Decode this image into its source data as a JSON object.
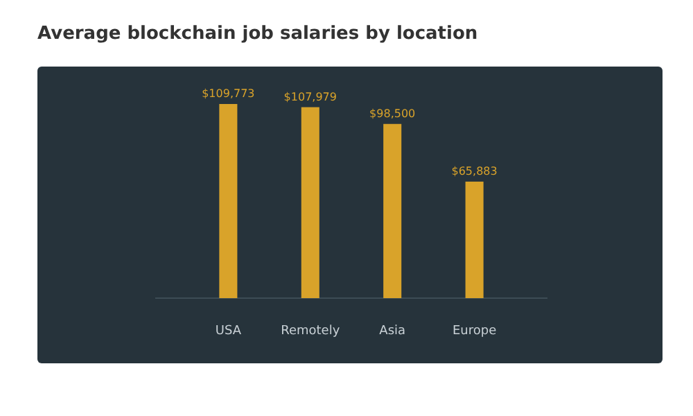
{
  "chart_data": {
    "type": "bar",
    "title": "Average blockchain job salaries by location",
    "categories": [
      "USA",
      "Remotely",
      "Asia",
      "Europe"
    ],
    "values": [
      109773,
      107979,
      98500,
      65883
    ],
    "value_labels": [
      "$109,773",
      "$107,979",
      "$98,500",
      "$65,883"
    ],
    "color": "#d9a32a",
    "grid": false,
    "legend": false
  }
}
